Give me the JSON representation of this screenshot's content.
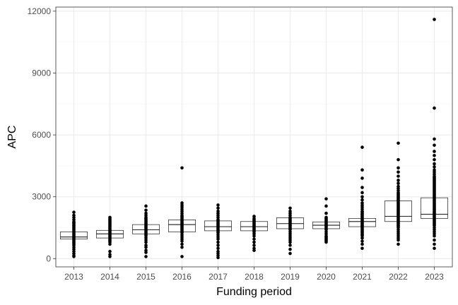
{
  "chart_data": {
    "type": "boxplot",
    "title": "",
    "xlabel": "Funding period",
    "ylabel": "APC",
    "ylim": [
      -400,
      12200
    ],
    "y_ticks": [
      0,
      3000,
      6000,
      9000,
      12000
    ],
    "y_tick_labels": [
      "0",
      "3000",
      "6000",
      "9000",
      "12000"
    ],
    "grid": true,
    "colors": {
      "box_stroke": "#333333",
      "point": "#000000",
      "grid_major": "#ebebeb",
      "grid_minor": "#f5f5f5",
      "panel_border": "#333333"
    },
    "categories": [
      "2013",
      "2014",
      "2015",
      "2016",
      "2017",
      "2018",
      "2019",
      "2020",
      "2021",
      "2022",
      "2023"
    ],
    "boxes": [
      {
        "q1": 950,
        "median": 1050,
        "q3": 1300
      },
      {
        "q1": 1000,
        "median": 1200,
        "q3": 1370
      },
      {
        "q1": 1200,
        "median": 1400,
        "q3": 1650
      },
      {
        "q1": 1300,
        "median": 1650,
        "q3": 1880
      },
      {
        "q1": 1350,
        "median": 1550,
        "q3": 1830
      },
      {
        "q1": 1350,
        "median": 1550,
        "q3": 1800
      },
      {
        "q1": 1450,
        "median": 1700,
        "q3": 1980
      },
      {
        "q1": 1450,
        "median": 1620,
        "q3": 1780
      },
      {
        "q1": 1550,
        "median": 1800,
        "q3": 1950
      },
      {
        "q1": 1800,
        "median": 2050,
        "q3": 2800
      },
      {
        "q1": 1950,
        "median": 2150,
        "q3": 2950
      }
    ],
    "points": [
      [
        100,
        150,
        250,
        350,
        450,
        550,
        650,
        700,
        750,
        800,
        850,
        900,
        950,
        1000,
        1050,
        1100,
        1150,
        1200,
        1250,
        1300,
        1350,
        1400,
        1450,
        1500,
        1550,
        1600,
        1650,
        1700,
        1750,
        1800,
        1900,
        2000,
        2100,
        2250
      ],
      [
        100,
        200,
        350,
        700,
        800,
        850,
        900,
        950,
        1000,
        1050,
        1100,
        1150,
        1200,
        1250,
        1300,
        1350,
        1400,
        1450,
        1500,
        1550,
        1600,
        1650,
        1700,
        1750,
        1800,
        1850,
        1900,
        1950,
        2000
      ],
      [
        100,
        300,
        400,
        550,
        650,
        800,
        900,
        1000,
        1100,
        1150,
        1200,
        1250,
        1300,
        1350,
        1400,
        1450,
        1500,
        1550,
        1600,
        1650,
        1700,
        1750,
        1800,
        1850,
        1900,
        1950,
        2000,
        2100,
        2200,
        2350,
        2550
      ],
      [
        100,
        550,
        700,
        850,
        950,
        1050,
        1150,
        1250,
        1300,
        1350,
        1400,
        1450,
        1500,
        1550,
        1600,
        1650,
        1700,
        1750,
        1800,
        1850,
        1900,
        1950,
        2000,
        2050,
        2100,
        2200,
        2300,
        2400,
        2500,
        2600,
        2700,
        4400
      ],
      [
        50,
        150,
        250,
        350,
        500,
        650,
        800,
        950,
        1050,
        1150,
        1250,
        1300,
        1350,
        1400,
        1450,
        1500,
        1550,
        1600,
        1650,
        1700,
        1750,
        1800,
        1850,
        1900,
        2000,
        2100,
        2200,
        2300,
        2450,
        2600
      ],
      [
        400,
        500,
        650,
        800,
        950,
        1100,
        1200,
        1300,
        1350,
        1400,
        1450,
        1500,
        1550,
        1600,
        1650,
        1700,
        1750,
        1800,
        1850,
        1900,
        1950,
        2050
      ],
      [
        250,
        450,
        650,
        800,
        900,
        1000,
        1100,
        1200,
        1300,
        1400,
        1450,
        1500,
        1550,
        1600,
        1650,
        1700,
        1750,
        1800,
        1850,
        1900,
        1950,
        2000,
        2100,
        2200,
        2300,
        2450
      ],
      [
        800,
        850,
        900,
        950,
        1000,
        1050,
        1100,
        1200,
        1300,
        1400,
        1450,
        1500,
        1550,
        1600,
        1650,
        1700,
        1750,
        1800,
        1850,
        1900,
        1950,
        2000,
        2200,
        2550,
        2900
      ],
      [
        500,
        700,
        850,
        1000,
        1100,
        1150,
        1200,
        1250,
        1300,
        1350,
        1400,
        1450,
        1500,
        1550,
        1600,
        1650,
        1700,
        1750,
        1800,
        1850,
        1900,
        1950,
        2000,
        2050,
        2100,
        2150,
        2200,
        2250,
        2300,
        2400,
        2500,
        2600,
        2700,
        2850,
        3000,
        3200,
        3450,
        3900,
        4300,
        5400
      ],
      [
        700,
        900,
        1000,
        1100,
        1200,
        1300,
        1400,
        1500,
        1550,
        1600,
        1650,
        1700,
        1750,
        1800,
        1850,
        1900,
        1950,
        2000,
        2050,
        2100,
        2150,
        2200,
        2250,
        2300,
        2350,
        2400,
        2450,
        2500,
        2550,
        2600,
        2650,
        2700,
        2750,
        2800,
        2850,
        2900,
        2950,
        3000,
        3050,
        3100,
        3150,
        3200,
        3300,
        3400,
        3500,
        3650,
        3800,
        4000,
        4200,
        4400,
        4800,
        5600
      ],
      [
        500,
        700,
        900,
        1100,
        1200,
        1300,
        1400,
        1500,
        1600,
        1650,
        1700,
        1750,
        1800,
        1850,
        1900,
        1950,
        2000,
        2050,
        2100,
        2150,
        2200,
        2250,
        2300,
        2350,
        2400,
        2450,
        2500,
        2550,
        2600,
        2650,
        2700,
        2750,
        2800,
        2850,
        2900,
        2950,
        3000,
        3050,
        3100,
        3150,
        3200,
        3250,
        3300,
        3350,
        3400,
        3450,
        3500,
        3550,
        3600,
        3650,
        3700,
        3750,
        3800,
        3850,
        3900,
        3950,
        4000,
        4100,
        4200,
        4300,
        4450,
        4600,
        4800,
        5000,
        5200,
        5500,
        5800,
        7300,
        11600
      ]
    ]
  }
}
